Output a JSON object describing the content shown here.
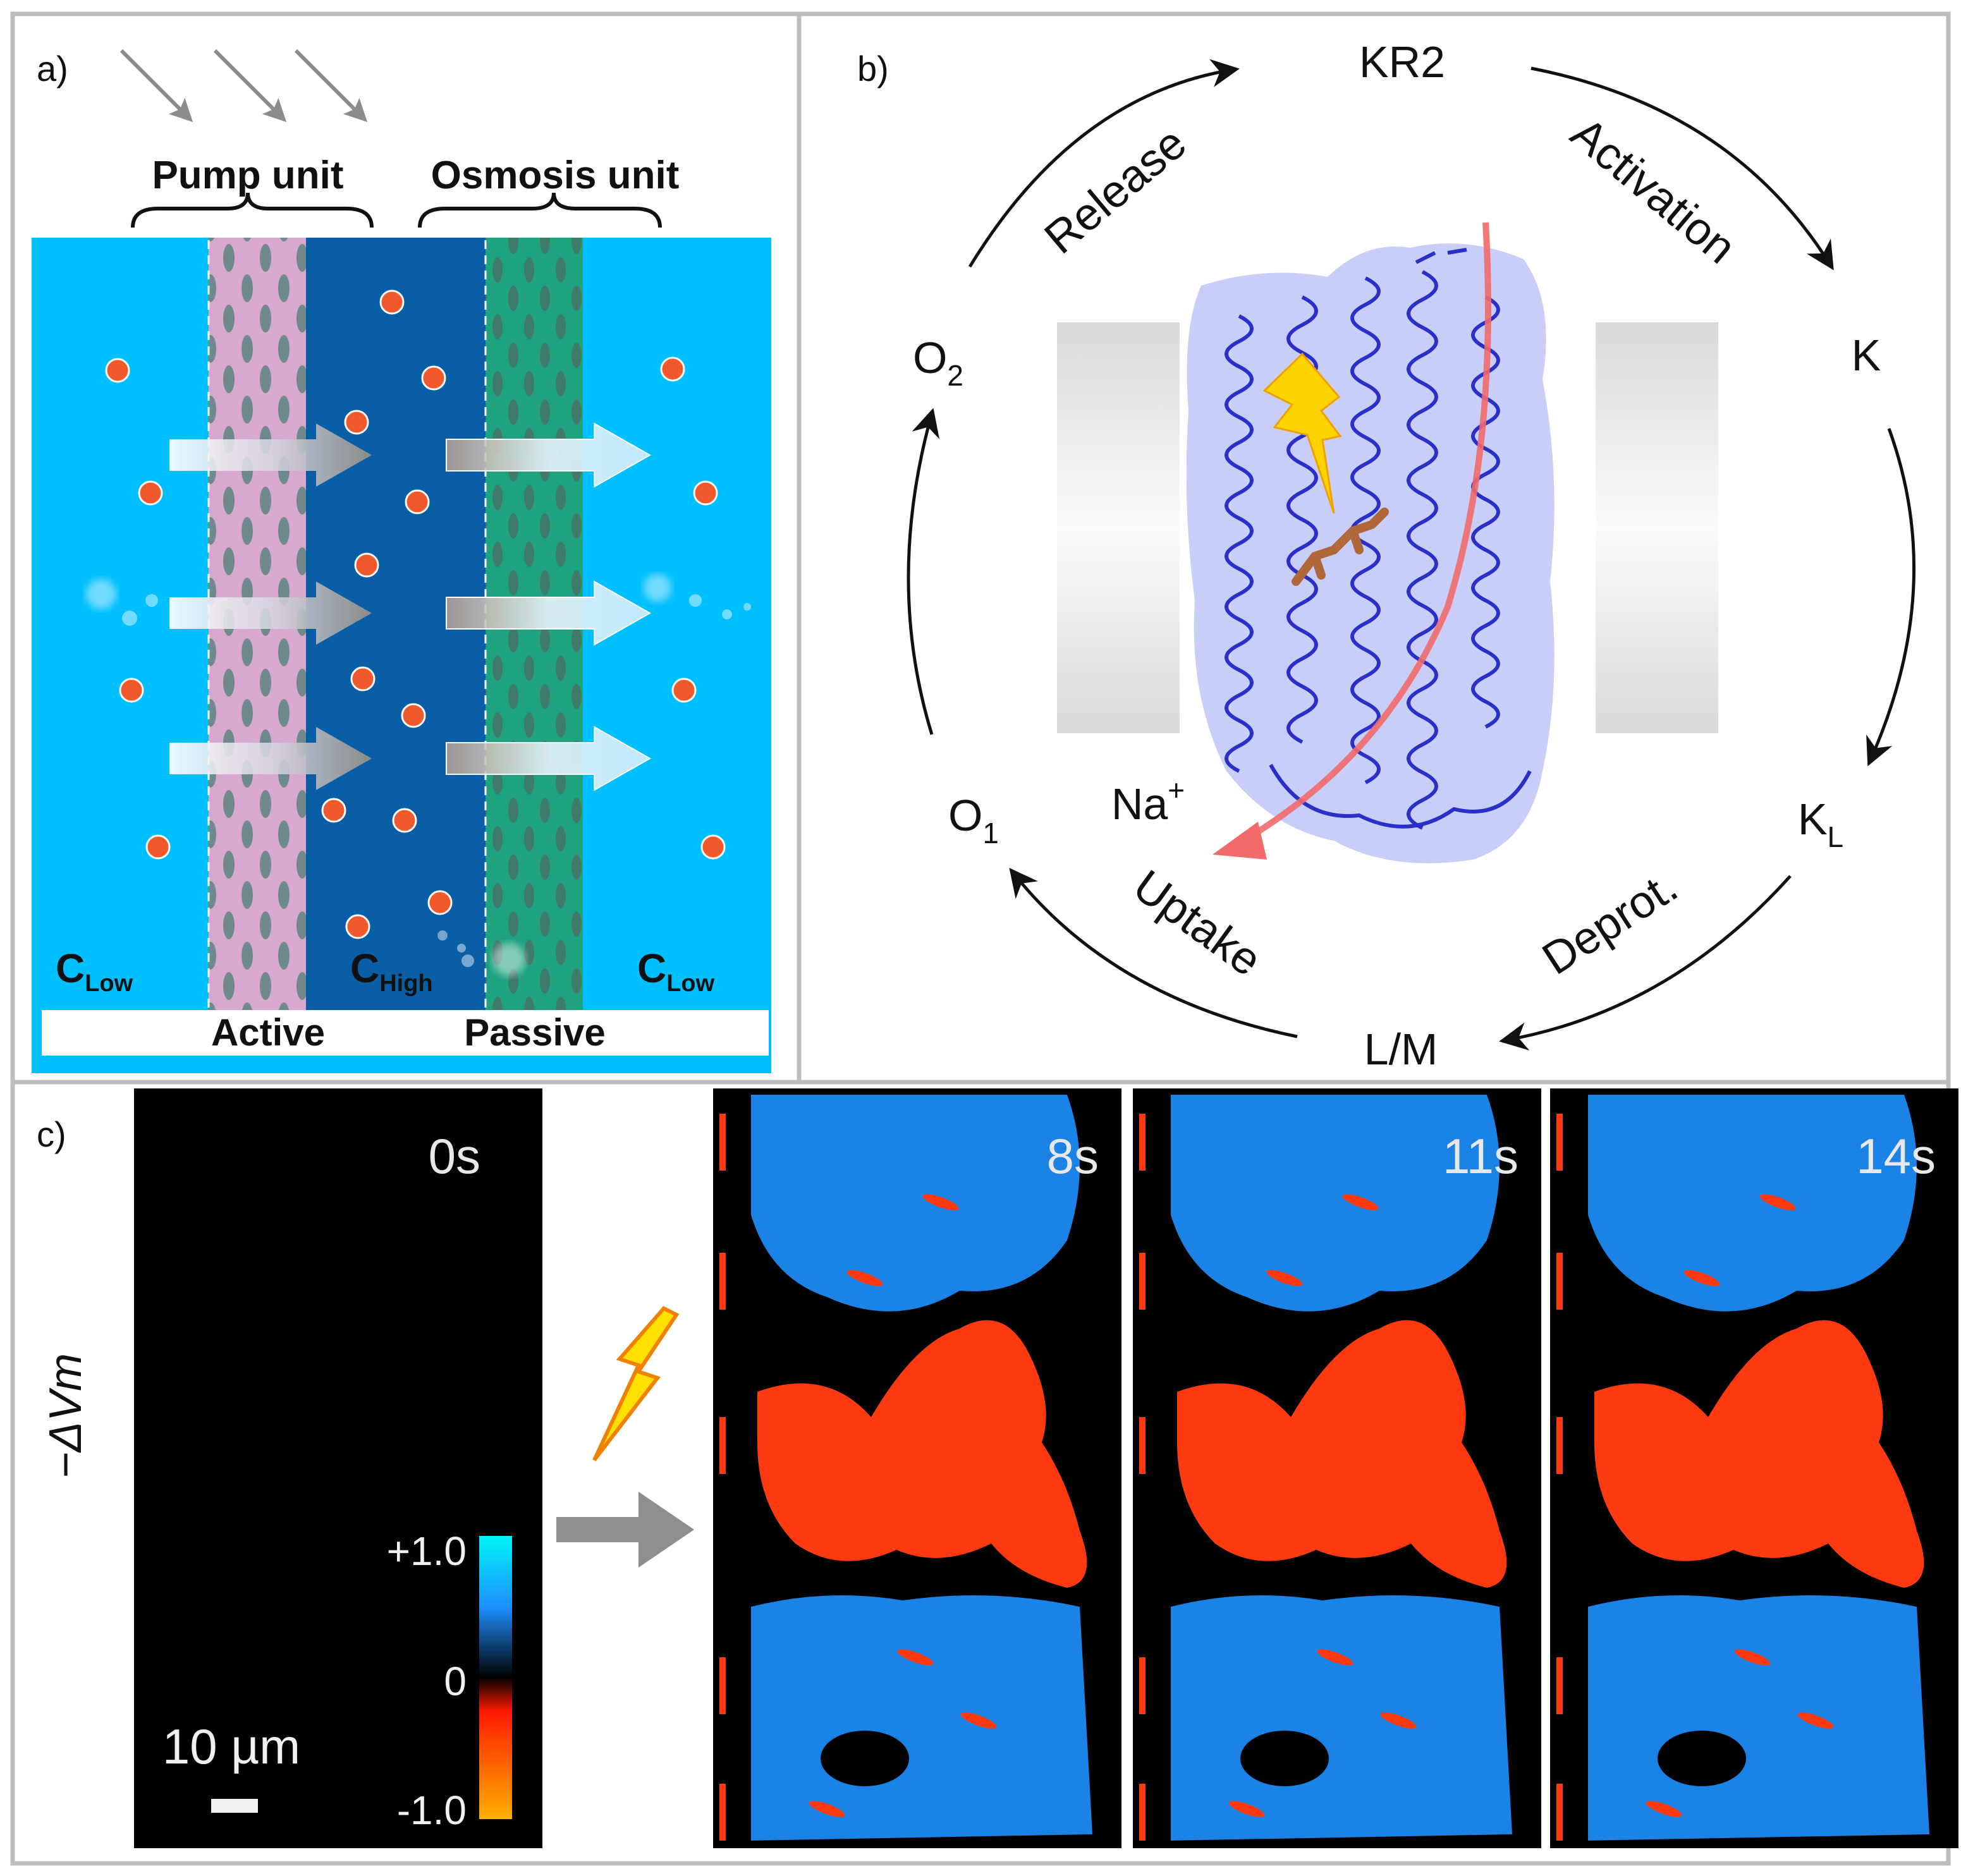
{
  "panel_a": {
    "label": "a)",
    "pump_unit": "Pump unit",
    "osmosis_unit": "Osmosis unit",
    "c_low_left": {
      "main": "C",
      "sub": "Low"
    },
    "c_high": {
      "main": "C",
      "sub": "High"
    },
    "c_low_right": {
      "main": "C",
      "sub": "Low"
    },
    "active": "Active",
    "passive": "Passive",
    "colors": {
      "water": "#00BFFF",
      "middle": "#0A5EA6",
      "pump_membrane": "#D8A8D0",
      "osmosis_membrane": "#1FA27E",
      "ion": "#F0592B"
    }
  },
  "panel_b": {
    "label": "b)",
    "kr2": "KR2",
    "activation": "Activation",
    "k": "K",
    "kl": {
      "main": "K",
      "sub": "L"
    },
    "deprot": "Deprot.",
    "lm": "L/M",
    "uptake": "Uptake",
    "o1": {
      "main": "O",
      "sub": "1"
    },
    "na": {
      "main": "Na",
      "sup": "+"
    },
    "o2": {
      "main": "O",
      "sub": "2"
    },
    "release": "Release",
    "colors": {
      "protein": "#2A2FC8",
      "channel": "#F26A6A",
      "bolt": "#FFD400"
    }
  },
  "panel_c": {
    "label": "c)",
    "y_label": "−ΔVm",
    "frames": [
      "0s",
      "8s",
      "11s",
      "14s"
    ],
    "colorbar": {
      "top": "+1.0",
      "middle": "0",
      "bottom": "-1.0"
    },
    "scale_bar": "10 µm",
    "colors": {
      "depolarized": "#1E90FF",
      "hyperpolarized": "#FF3A10"
    }
  }
}
